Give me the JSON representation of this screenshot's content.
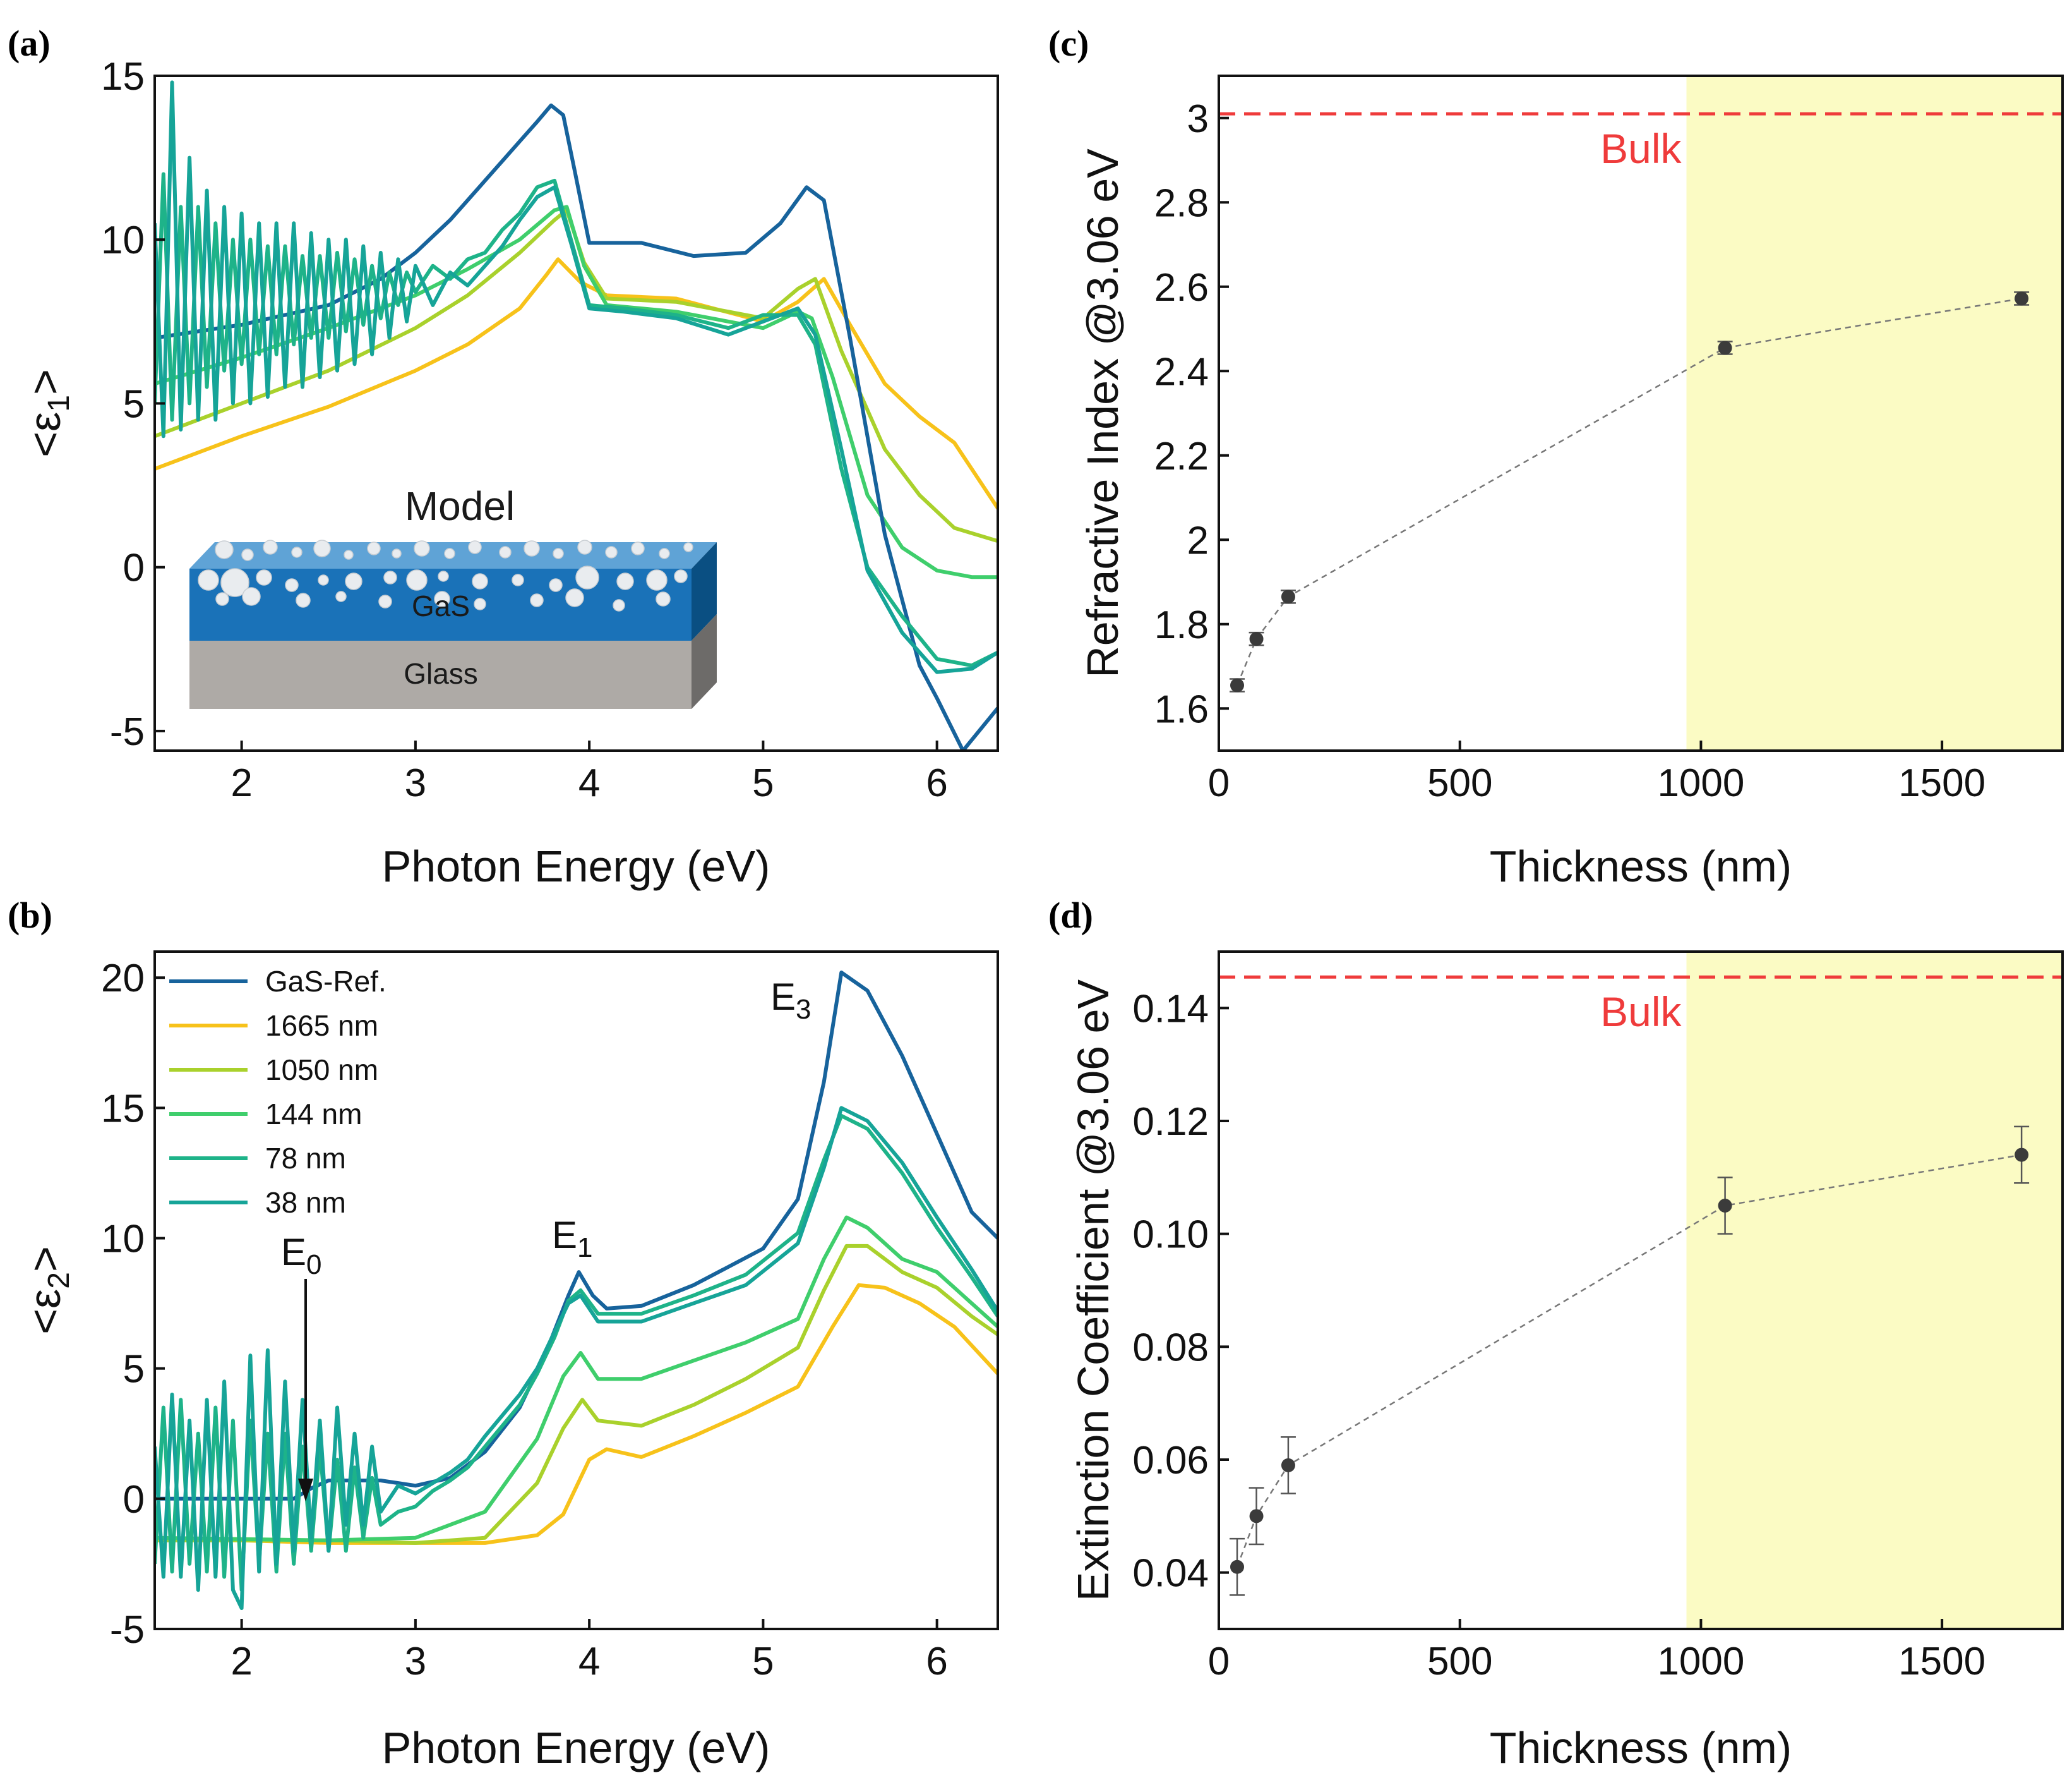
{
  "figure": {
    "panels": [
      {
        "id": "a",
        "label": "(a)"
      },
      {
        "id": "b",
        "label": "(b)"
      },
      {
        "id": "c",
        "label": "(c)"
      },
      {
        "id": "d",
        "label": "(d)"
      }
    ],
    "model_inset": {
      "title": "Model",
      "layer_top": "GaS",
      "layer_bottom": "Glass"
    },
    "colors": {
      "GaS-Ref.": "#17639c",
      "1665 nm": "#f7c21a",
      "1050 nm": "#a9d12c",
      "144 nm": "#3fce6c",
      "78 nm": "#1eb389",
      "38 nm": "#16a498",
      "bulk": "#ef3b3b",
      "shade": "#fbfbc4",
      "points": "#3b3b3b"
    }
  },
  "chart_data": [
    {
      "id": "a",
      "type": "line",
      "title": "",
      "xlabel": "Photon Energy (eV)",
      "ylabel": "<ε1>",
      "xlim": [
        1.5,
        6.35
      ],
      "ylim": [
        -5.6,
        15
      ],
      "xticks": [
        2,
        3,
        4,
        5,
        6
      ],
      "yticks": [
        -5,
        0,
        5,
        10,
        15
      ],
      "series": [
        {
          "name": "GaS-Ref.",
          "x": [
            1.5,
            2.0,
            2.5,
            2.8,
            3.0,
            3.2,
            3.4,
            3.6,
            3.7,
            3.78,
            3.85,
            3.92,
            4.0,
            4.3,
            4.6,
            4.9,
            5.1,
            5.25,
            5.35,
            5.5,
            5.7,
            5.9,
            6.0,
            6.15,
            6.35
          ],
          "y": [
            7.0,
            7.4,
            8.0,
            8.8,
            9.6,
            10.6,
            11.8,
            13.0,
            13.6,
            14.1,
            13.8,
            12.0,
            9.9,
            9.9,
            9.5,
            9.6,
            10.5,
            11.6,
            11.2,
            7.0,
            1.0,
            -3.0,
            -4.0,
            -5.6,
            -4.3
          ]
        },
        {
          "name": "1665 nm",
          "x": [
            1.5,
            2.0,
            2.5,
            3.0,
            3.3,
            3.6,
            3.75,
            3.82,
            3.95,
            4.1,
            4.5,
            5.0,
            5.2,
            5.35,
            5.5,
            5.7,
            5.9,
            6.1,
            6.35
          ],
          "y": [
            3.0,
            4.0,
            4.9,
            6.0,
            6.8,
            7.9,
            8.9,
            9.4,
            8.7,
            8.3,
            8.2,
            7.5,
            8.1,
            8.8,
            7.4,
            5.6,
            4.6,
            3.8,
            1.8
          ]
        },
        {
          "name": "1050 nm",
          "x": [
            1.5,
            2.0,
            2.5,
            3.0,
            3.3,
            3.6,
            3.8,
            3.87,
            3.97,
            4.1,
            4.5,
            5.0,
            5.2,
            5.3,
            5.45,
            5.7,
            5.9,
            6.1,
            6.35
          ],
          "y": [
            4.0,
            5.0,
            6.0,
            7.3,
            8.3,
            9.6,
            10.6,
            10.9,
            9.3,
            8.2,
            8.1,
            7.6,
            8.5,
            8.8,
            6.6,
            3.6,
            2.2,
            1.2,
            0.8
          ]
        },
        {
          "name": "144 nm",
          "x": [
            1.5,
            2.0,
            2.5,
            3.0,
            3.3,
            3.6,
            3.8,
            3.87,
            3.97,
            4.1,
            4.5,
            5.0,
            5.2,
            5.28,
            5.4,
            5.6,
            5.8,
            6.0,
            6.2,
            6.35
          ],
          "y": [
            5.6,
            6.4,
            7.3,
            8.3,
            9.1,
            10.0,
            10.9,
            11.0,
            9.2,
            8.0,
            7.8,
            7.3,
            7.8,
            7.6,
            5.8,
            2.2,
            0.6,
            -0.1,
            -0.3,
            -0.3
          ]
        },
        {
          "name": "78 nm",
          "x": [
            1.5,
            1.55,
            1.6,
            1.65,
            1.7,
            1.75,
            1.8,
            1.85,
            1.9,
            1.95,
            2.0,
            2.05,
            2.1,
            2.15,
            2.2,
            2.25,
            2.3,
            2.35,
            2.4,
            2.45,
            2.5,
            2.55,
            2.6,
            2.65,
            2.7,
            2.75,
            2.8,
            2.85,
            2.9,
            2.95,
            3.0,
            3.1,
            3.2,
            3.3,
            3.4,
            3.5,
            3.6,
            3.7,
            3.8,
            3.9,
            4.0,
            4.2,
            4.5,
            4.8,
            5.0,
            5.2,
            5.3,
            5.45,
            5.6,
            5.8,
            6.0,
            6.2,
            6.35
          ],
          "y": [
            5.0,
            12.0,
            4.5,
            11.0,
            5.0,
            11.0,
            5.5,
            10.5,
            6.0,
            10.0,
            6.2,
            10.0,
            6.5,
            9.8,
            6.5,
            9.8,
            6.8,
            9.5,
            7.0,
            9.5,
            7.0,
            9.6,
            7.2,
            9.4,
            7.4,
            9.2,
            7.6,
            9.0,
            8.0,
            9.0,
            8.4,
            9.2,
            8.8,
            9.4,
            9.6,
            10.3,
            10.8,
            11.6,
            11.8,
            9.9,
            8.0,
            7.9,
            7.7,
            7.3,
            7.7,
            7.7,
            6.8,
            3.0,
            0.0,
            -1.5,
            -2.8,
            -3.0,
            -2.6
          ]
        },
        {
          "name": "38 nm",
          "x": [
            1.5,
            1.55,
            1.6,
            1.65,
            1.7,
            1.75,
            1.8,
            1.85,
            1.9,
            1.95,
            2.0,
            2.05,
            2.1,
            2.15,
            2.2,
            2.25,
            2.3,
            2.35,
            2.4,
            2.45,
            2.5,
            2.55,
            2.6,
            2.65,
            2.7,
            2.75,
            2.8,
            2.85,
            2.9,
            2.95,
            3.0,
            3.1,
            3.2,
            3.3,
            3.4,
            3.5,
            3.6,
            3.7,
            3.8,
            3.9,
            4.0,
            4.2,
            4.5,
            4.8,
            5.0,
            5.2,
            5.3,
            5.45,
            5.6,
            5.8,
            6.0,
            6.2,
            6.35
          ],
          "y": [
            10.5,
            4.0,
            14.8,
            4.2,
            12.5,
            4.5,
            11.5,
            4.5,
            11.0,
            5.0,
            10.8,
            5.0,
            10.5,
            5.2,
            10.5,
            5.5,
            10.5,
            5.5,
            10.2,
            5.8,
            10.0,
            6.0,
            10.0,
            6.2,
            9.8,
            6.5,
            9.6,
            7.0,
            9.4,
            7.5,
            9.2,
            8.0,
            9.0,
            8.6,
            9.2,
            9.8,
            10.6,
            11.3,
            11.6,
            9.8,
            7.9,
            7.8,
            7.6,
            7.1,
            7.5,
            7.9,
            7.1,
            3.6,
            -0.1,
            -2.0,
            -3.2,
            -3.1,
            -2.6
          ]
        }
      ]
    },
    {
      "id": "b",
      "type": "line",
      "title": "",
      "xlabel": "Photon Energy (eV)",
      "ylabel": "<ε2>",
      "xlim": [
        1.5,
        6.35
      ],
      "ylim": [
        -5,
        21
      ],
      "xticks": [
        2,
        3,
        4,
        5,
        6
      ],
      "yticks": [
        -5,
        0,
        5,
        10,
        15,
        20
      ],
      "legend_position": "top-left",
      "annotations": [
        "E0",
        "E1",
        "E3"
      ],
      "series": [
        {
          "name": "GaS-Ref.",
          "x": [
            1.5,
            2.0,
            2.3,
            2.4,
            2.5,
            2.8,
            3.0,
            3.2,
            3.4,
            3.6,
            3.75,
            3.88,
            3.94,
            4.02,
            4.1,
            4.3,
            4.6,
            5.0,
            5.2,
            5.35,
            5.45,
            5.6,
            5.8,
            6.0,
            6.2,
            6.35
          ],
          "y": [
            0.0,
            0.0,
            0.0,
            0.4,
            0.7,
            0.7,
            0.5,
            0.8,
            1.8,
            3.5,
            5.6,
            7.8,
            8.7,
            7.8,
            7.3,
            7.4,
            8.2,
            9.6,
            11.5,
            16.0,
            20.2,
            19.5,
            17.0,
            14.0,
            11.0,
            10.0
          ]
        },
        {
          "name": "1665 nm",
          "x": [
            1.5,
            2.5,
            3.0,
            3.4,
            3.7,
            3.85,
            4.0,
            4.1,
            4.3,
            4.6,
            4.9,
            5.2,
            5.4,
            5.55,
            5.7,
            5.9,
            6.1,
            6.35
          ],
          "y": [
            -1.5,
            -1.7,
            -1.7,
            -1.7,
            -1.4,
            -0.6,
            1.5,
            1.9,
            1.6,
            2.4,
            3.3,
            4.3,
            6.6,
            8.2,
            8.1,
            7.5,
            6.6,
            4.8
          ]
        },
        {
          "name": "1050 nm",
          "x": [
            1.5,
            2.5,
            3.0,
            3.4,
            3.7,
            3.85,
            3.96,
            4.05,
            4.3,
            4.6,
            4.9,
            5.2,
            5.35,
            5.48,
            5.6,
            5.8,
            6.0,
            6.2,
            6.35
          ],
          "y": [
            -1.6,
            -1.6,
            -1.7,
            -1.5,
            0.6,
            2.7,
            3.8,
            3.0,
            2.8,
            3.6,
            4.6,
            5.8,
            8.0,
            9.7,
            9.7,
            8.7,
            8.1,
            7.0,
            6.3
          ]
        },
        {
          "name": "144 nm",
          "x": [
            1.5,
            2.5,
            3.0,
            3.4,
            3.7,
            3.85,
            3.95,
            4.05,
            4.3,
            4.6,
            4.9,
            5.2,
            5.35,
            5.48,
            5.6,
            5.8,
            6.0,
            6.2,
            6.35
          ],
          "y": [
            -1.5,
            -1.6,
            -1.5,
            -0.5,
            2.3,
            4.7,
            5.6,
            4.6,
            4.6,
            5.3,
            6.0,
            6.9,
            9.2,
            10.8,
            10.4,
            9.2,
            8.7,
            7.5,
            6.6
          ]
        },
        {
          "name": "78 nm",
          "x": [
            1.5,
            1.55,
            1.6,
            1.65,
            1.7,
            1.75,
            1.8,
            1.85,
            1.9,
            1.95,
            2.0,
            2.05,
            2.1,
            2.15,
            2.2,
            2.25,
            2.3,
            2.35,
            2.4,
            2.45,
            2.5,
            2.55,
            2.6,
            2.65,
            2.7,
            2.75,
            2.8,
            2.9,
            3.0,
            3.1,
            3.2,
            3.3,
            3.4,
            3.5,
            3.6,
            3.7,
            3.8,
            3.88,
            3.95,
            4.05,
            4.3,
            4.6,
            4.9,
            5.2,
            5.35,
            5.45,
            5.6,
            5.8,
            6.0,
            6.2,
            6.35
          ],
          "y": [
            -2.5,
            3.5,
            -2.8,
            3.8,
            -2.5,
            2.5,
            -2.8,
            3.5,
            -3.0,
            3.0,
            -3.5,
            3.0,
            -2.5,
            2.5,
            -2.8,
            2.5,
            -2.5,
            2.0,
            -2.0,
            2.0,
            -2.0,
            1.5,
            -2.0,
            1.2,
            -1.5,
            0.8,
            -1.0,
            -0.5,
            -0.3,
            0.3,
            0.7,
            1.2,
            2.0,
            2.8,
            3.6,
            4.8,
            6.2,
            7.6,
            8.0,
            7.1,
            7.1,
            7.8,
            8.6,
            10.2,
            13.0,
            14.7,
            14.2,
            12.5,
            10.4,
            8.5,
            7.0
          ]
        },
        {
          "name": "38 nm",
          "x": [
            1.5,
            1.55,
            1.6,
            1.65,
            1.7,
            1.75,
            1.8,
            1.85,
            1.9,
            1.95,
            2.0,
            2.05,
            2.1,
            2.15,
            2.2,
            2.25,
            2.3,
            2.35,
            2.4,
            2.45,
            2.5,
            2.55,
            2.6,
            2.65,
            2.7,
            2.75,
            2.8,
            2.9,
            3.0,
            3.1,
            3.2,
            3.3,
            3.4,
            3.5,
            3.6,
            3.7,
            3.8,
            3.88,
            3.95,
            4.05,
            4.3,
            4.6,
            4.9,
            5.2,
            5.35,
            5.45,
            5.6,
            5.8,
            6.0,
            6.2,
            6.35
          ],
          "y": [
            2.0,
            -3.0,
            4.0,
            -3.0,
            3.0,
            -3.5,
            3.8,
            -3.0,
            4.5,
            -3.5,
            -4.2,
            5.5,
            -2.8,
            5.7,
            -2.5,
            4.5,
            -2.0,
            3.8,
            -1.5,
            3.0,
            -2.0,
            3.5,
            -1.0,
            2.5,
            -1.0,
            2.0,
            -0.5,
            0.5,
            0.2,
            0.6,
            1.0,
            1.5,
            2.4,
            3.2,
            4.0,
            5.0,
            6.4,
            7.5,
            7.8,
            6.8,
            6.8,
            7.5,
            8.2,
            9.8,
            12.7,
            15.0,
            14.5,
            12.9,
            10.8,
            8.8,
            7.2
          ]
        }
      ]
    },
    {
      "id": "c",
      "type": "scatter",
      "title": "",
      "xlabel": "Thickness (nm)",
      "ylabel": "Refractive Index @3.06 eV",
      "xlim": [
        0,
        1750
      ],
      "ylim": [
        1.5,
        3.1
      ],
      "xticks": [
        0,
        500,
        1000,
        1500
      ],
      "yticks": [
        1.6,
        1.8,
        2.0,
        2.2,
        2.4,
        2.6,
        2.8,
        3.0
      ],
      "shaded_region_x": [
        970,
        1750
      ],
      "reference_line": {
        "label": "Bulk",
        "y": 3.01
      },
      "x": [
        38,
        78,
        144,
        1050,
        1665
      ],
      "y": [
        1.655,
        1.765,
        1.865,
        2.455,
        2.572
      ],
      "error": [
        0.015,
        0.015,
        0.015,
        0.015,
        0.015
      ]
    },
    {
      "id": "d",
      "type": "scatter",
      "title": "",
      "xlabel": "Thickness (nm)",
      "ylabel": "Extinction Coefficient @3.06 eV",
      "xlim": [
        0,
        1750
      ],
      "ylim": [
        0.03,
        0.15
      ],
      "xticks": [
        0,
        500,
        1000,
        1500
      ],
      "yticks": [
        0.04,
        0.06,
        0.08,
        0.1,
        0.12,
        0.14
      ],
      "ytick_labels": [
        "0.04",
        "0.06",
        "0.08",
        "0.10",
        "0.12",
        "0.14"
      ],
      "shaded_region_x": [
        970,
        1750
      ],
      "reference_line": {
        "label": "Bulk",
        "y": 0.1455
      },
      "x": [
        38,
        78,
        144,
        1050,
        1665
      ],
      "y": [
        0.041,
        0.05,
        0.059,
        0.105,
        0.114
      ],
      "error": [
        0.005,
        0.005,
        0.005,
        0.005,
        0.005
      ]
    }
  ]
}
